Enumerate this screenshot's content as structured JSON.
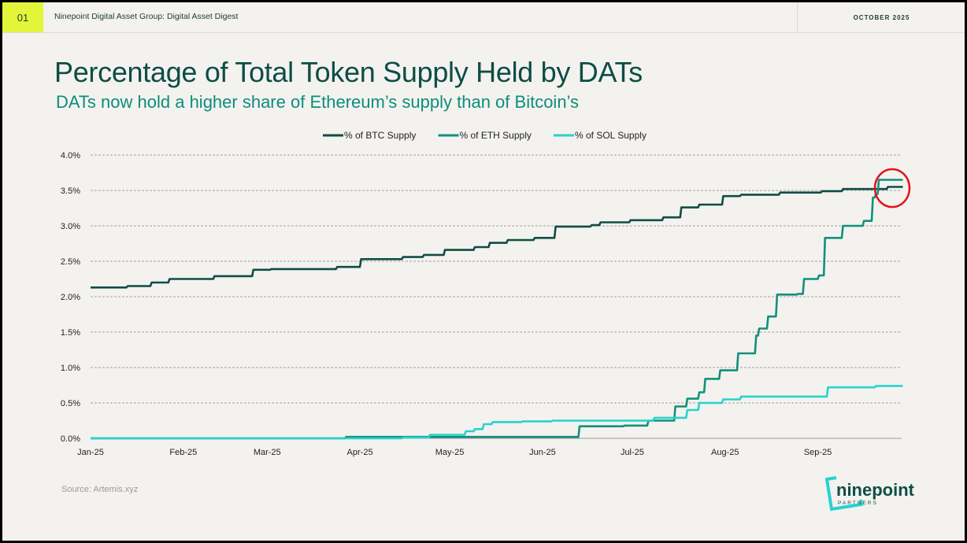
{
  "header": {
    "page_number": "01",
    "doc_title": "Ninepoint Digital Asset Group: Digital Asset Digest",
    "date": "OCTOBER 2025"
  },
  "slide": {
    "title": "Percentage of Total Token Supply Held by DATs",
    "subtitle": "DATs now hold a higher share of Ethereum’s supply than of Bitcoin’s",
    "source": "Source: Artemis.xyz"
  },
  "logo": {
    "name": "ninepoint",
    "sub": "PARTNERS"
  },
  "colors": {
    "btc": "#0f4d45",
    "eth": "#12907c",
    "sol": "#27d3cc",
    "highlight": "#e0141e"
  },
  "chart_data": {
    "type": "line",
    "title": "Percentage of Total Token Supply Held by DATs",
    "xlabel": "",
    "ylabel": "",
    "x_unit": "days since 2025-01-01",
    "xlim": [
      0,
      271
    ],
    "ylim": [
      0,
      4
    ],
    "yticks": [
      0,
      0.5,
      1,
      1.5,
      2,
      2.5,
      3,
      3.5,
      4
    ],
    "ytick_labels": [
      "0.0%",
      "0.5%",
      "1.0%",
      "1.5%",
      "2.0%",
      "2.5%",
      "3.0%",
      "3.5%",
      "4.0%"
    ],
    "xticks": [
      0,
      31,
      59,
      90,
      120,
      151,
      181,
      212,
      243
    ],
    "xtick_labels": [
      "Jan-25",
      "Feb-25",
      "Mar-25",
      "Apr-25",
      "May-25",
      "Jun-25",
      "Jul-25",
      "Aug-25",
      "Sep-25"
    ],
    "grid": "horizontal-dashed",
    "legend": "top-center",
    "annotation": "red circle highlighting ETH crossing above BTC in late Sep-25",
    "series": [
      {
        "name": "% of BTC Supply",
        "color": "#0f4d45",
        "points": [
          [
            0,
            2.13
          ],
          [
            12,
            2.15
          ],
          [
            20,
            2.2
          ],
          [
            26,
            2.25
          ],
          [
            41,
            2.29
          ],
          [
            54,
            2.38
          ],
          [
            60,
            2.39
          ],
          [
            82,
            2.42
          ],
          [
            90,
            2.53
          ],
          [
            104,
            2.56
          ],
          [
            111,
            2.59
          ],
          [
            118,
            2.66
          ],
          [
            128,
            2.7
          ],
          [
            133,
            2.76
          ],
          [
            139,
            2.8
          ],
          [
            148,
            2.83
          ],
          [
            155,
            2.99
          ],
          [
            167,
            3.01
          ],
          [
            170,
            3.05
          ],
          [
            180,
            3.08
          ],
          [
            191,
            3.12
          ],
          [
            197,
            3.26
          ],
          [
            203,
            3.3
          ],
          [
            211,
            3.42
          ],
          [
            217,
            3.44
          ],
          [
            230,
            3.47
          ],
          [
            244,
            3.49
          ],
          [
            251,
            3.52
          ],
          [
            264,
            3.52
          ],
          [
            266,
            3.55
          ],
          [
            271,
            3.55
          ]
        ]
      },
      {
        "name": "% of ETH Supply",
        "color": "#12907c",
        "points": [
          [
            0,
            0
          ],
          [
            85,
            0.02
          ],
          [
            163,
            0.17
          ],
          [
            178,
            0.18
          ],
          [
            186,
            0.25
          ],
          [
            195,
            0.45
          ],
          [
            199,
            0.56
          ],
          [
            203,
            0.65
          ],
          [
            205,
            0.84
          ],
          [
            210,
            0.96
          ],
          [
            216,
            1.2
          ],
          [
            222,
            1.45
          ],
          [
            223,
            1.55
          ],
          [
            226,
            1.72
          ],
          [
            229,
            2.03
          ],
          [
            236,
            2.04
          ],
          [
            238,
            2.25
          ],
          [
            243,
            2.3
          ],
          [
            245,
            2.83
          ],
          [
            251,
            3.0
          ],
          [
            258,
            3.07
          ],
          [
            261,
            3.4
          ],
          [
            262,
            3.45
          ],
          [
            263,
            3.65
          ],
          [
            271,
            3.65
          ]
        ]
      },
      {
        "name": "% of SOL Supply",
        "color": "#27d3cc",
        "points": [
          [
            0,
            0
          ],
          [
            104,
            0.01
          ],
          [
            113,
            0.05
          ],
          [
            125,
            0.1
          ],
          [
            128,
            0.13
          ],
          [
            131,
            0.2
          ],
          [
            134,
            0.23
          ],
          [
            144,
            0.24
          ],
          [
            154,
            0.25
          ],
          [
            188,
            0.29
          ],
          [
            199,
            0.4
          ],
          [
            203,
            0.5
          ],
          [
            211,
            0.55
          ],
          [
            217,
            0.59
          ],
          [
            246,
            0.72
          ],
          [
            262,
            0.74
          ],
          [
            271,
            0.74
          ]
        ]
      }
    ]
  }
}
